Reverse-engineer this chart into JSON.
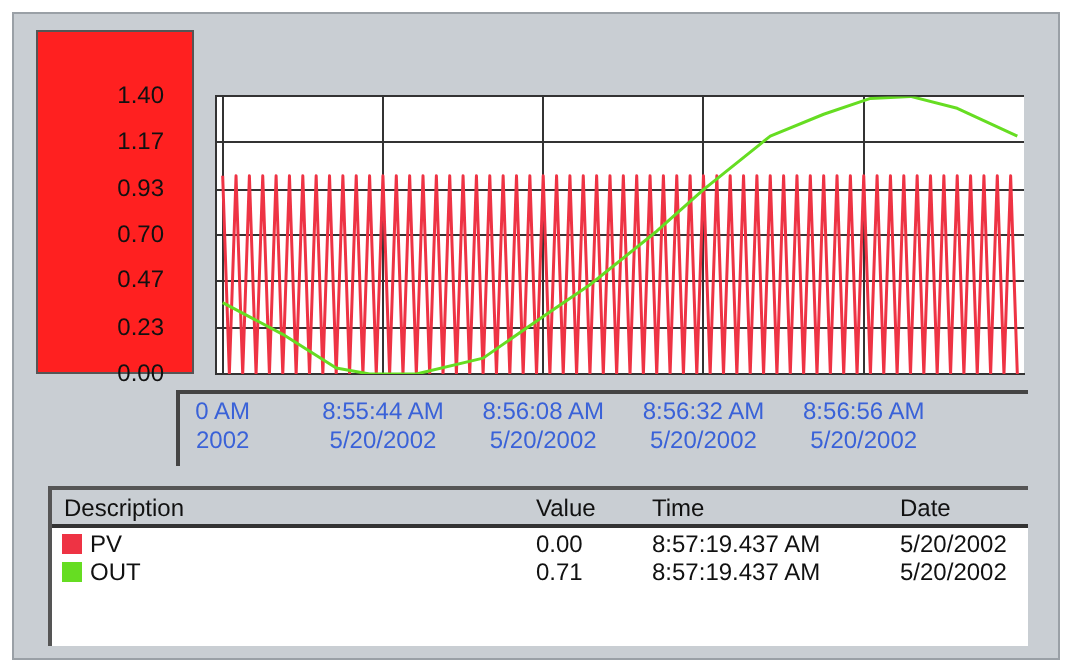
{
  "chart_data": {
    "type": "line",
    "x": [
      "2002-05-20T08:55:20",
      "2002-05-20T08:55:21",
      "2002-05-20T08:55:22",
      "2002-05-20T08:55:23",
      "2002-05-20T08:55:24",
      "2002-05-20T08:55:25",
      "2002-05-20T08:55:26",
      "2002-05-20T08:55:27",
      "2002-05-20T08:55:28",
      "2002-05-20T08:55:29",
      "2002-05-20T08:55:30",
      "2002-05-20T08:55:31",
      "2002-05-20T08:55:32",
      "2002-05-20T08:55:33",
      "2002-05-20T08:55:34",
      "2002-05-20T08:55:35",
      "2002-05-20T08:55:36",
      "2002-05-20T08:55:37",
      "2002-05-20T08:55:38",
      "2002-05-20T08:55:39",
      "2002-05-20T08:55:40",
      "2002-05-20T08:55:41",
      "2002-05-20T08:55:42",
      "2002-05-20T08:55:43",
      "2002-05-20T08:55:44",
      "2002-05-20T08:55:45",
      "2002-05-20T08:55:46",
      "2002-05-20T08:55:47",
      "2002-05-20T08:55:48",
      "2002-05-20T08:55:49",
      "2002-05-20T08:55:50",
      "2002-05-20T08:55:51",
      "2002-05-20T08:55:52",
      "2002-05-20T08:55:53",
      "2002-05-20T08:55:54",
      "2002-05-20T08:55:55",
      "2002-05-20T08:55:56",
      "2002-05-20T08:55:57",
      "2002-05-20T08:55:58",
      "2002-05-20T08:55:59",
      "2002-05-20T08:56:00",
      "2002-05-20T08:56:01",
      "2002-05-20T08:56:02",
      "2002-05-20T08:56:03",
      "2002-05-20T08:56:04",
      "2002-05-20T08:56:05",
      "2002-05-20T08:56:06",
      "2002-05-20T08:56:07",
      "2002-05-20T08:56:08",
      "2002-05-20T08:56:09",
      "2002-05-20T08:56:10",
      "2002-05-20T08:56:11",
      "2002-05-20T08:56:12",
      "2002-05-20T08:56:13",
      "2002-05-20T08:56:14",
      "2002-05-20T08:56:15",
      "2002-05-20T08:56:16",
      "2002-05-20T08:56:17",
      "2002-05-20T08:56:18",
      "2002-05-20T08:56:19",
      "2002-05-20T08:56:20",
      "2002-05-20T08:56:21",
      "2002-05-20T08:56:22",
      "2002-05-20T08:56:23",
      "2002-05-20T08:56:24",
      "2002-05-20T08:56:25",
      "2002-05-20T08:56:26",
      "2002-05-20T08:56:27",
      "2002-05-20T08:56:28",
      "2002-05-20T08:56:29",
      "2002-05-20T08:56:30",
      "2002-05-20T08:56:31",
      "2002-05-20T08:56:32",
      "2002-05-20T08:56:33",
      "2002-05-20T08:56:34",
      "2002-05-20T08:56:35",
      "2002-05-20T08:56:36",
      "2002-05-20T08:56:37",
      "2002-05-20T08:56:38",
      "2002-05-20T08:56:39",
      "2002-05-20T08:56:40",
      "2002-05-20T08:56:41",
      "2002-05-20T08:56:42",
      "2002-05-20T08:56:43",
      "2002-05-20T08:56:44",
      "2002-05-20T08:56:45",
      "2002-05-20T08:56:46",
      "2002-05-20T08:56:47",
      "2002-05-20T08:56:48",
      "2002-05-20T08:56:49",
      "2002-05-20T08:56:50",
      "2002-05-20T08:56:51",
      "2002-05-20T08:56:52",
      "2002-05-20T08:56:53",
      "2002-05-20T08:56:54",
      "2002-05-20T08:56:55",
      "2002-05-20T08:56:56",
      "2002-05-20T08:56:57",
      "2002-05-20T08:56:58",
      "2002-05-20T08:56:59",
      "2002-05-20T08:57:00",
      "2002-05-20T08:57:01",
      "2002-05-20T08:57:02",
      "2002-05-20T08:57:03",
      "2002-05-20T08:57:04",
      "2002-05-20T08:57:05",
      "2002-05-20T08:57:06",
      "2002-05-20T08:57:07",
      "2002-05-20T08:57:08",
      "2002-05-20T08:57:09",
      "2002-05-20T08:57:10",
      "2002-05-20T08:57:11",
      "2002-05-20T08:57:12",
      "2002-05-20T08:57:13",
      "2002-05-20T08:57:14",
      "2002-05-20T08:57:15",
      "2002-05-20T08:57:16",
      "2002-05-20T08:57:17",
      "2002-05-20T08:57:18",
      "2002-05-20T08:57:19"
    ],
    "series": [
      {
        "name": "PV",
        "color": "#ee3344",
        "values": [
          1,
          0,
          1,
          0,
          1,
          0,
          1,
          0,
          1,
          0,
          1,
          0,
          1,
          0,
          1,
          0,
          1,
          0,
          1,
          0,
          1,
          0,
          1,
          0,
          1,
          0,
          1,
          0,
          1,
          0,
          1,
          0,
          1,
          0,
          1,
          0,
          1,
          0,
          1,
          0,
          1,
          0,
          1,
          0,
          1,
          0,
          1,
          0,
          1,
          0,
          1,
          0,
          1,
          0,
          1,
          0,
          1,
          0,
          1,
          0,
          1,
          0,
          1,
          0,
          1,
          0,
          1,
          0,
          1,
          0,
          1,
          0,
          1,
          0,
          1,
          0,
          1,
          0,
          1,
          0,
          1,
          0,
          1,
          0,
          1,
          0,
          1,
          0,
          1,
          0,
          1,
          0,
          1,
          0,
          1,
          0,
          1,
          0,
          1,
          0,
          1,
          0,
          1,
          0,
          1,
          0,
          1,
          0,
          1,
          0,
          1,
          0,
          1,
          0,
          1,
          0,
          1,
          0,
          1,
          0
        ]
      },
      {
        "name": "OUT",
        "color": "#66dd22",
        "x": [
          "2002-05-20T08:55:20",
          "2002-05-20T08:55:29",
          "2002-05-20T08:55:37",
          "2002-05-20T08:55:42",
          "2002-05-20T08:55:49",
          "2002-05-20T08:55:59",
          "2002-05-20T08:56:08",
          "2002-05-20T08:56:15",
          "2002-05-20T08:56:25",
          "2002-05-20T08:56:32",
          "2002-05-20T08:56:42",
          "2002-05-20T08:56:50",
          "2002-05-20T08:56:57",
          "2002-05-20T08:57:03",
          "2002-05-20T08:57:10",
          "2002-05-20T08:57:19"
        ],
        "values": [
          0.36,
          0.2,
          0.03,
          0,
          0,
          0.08,
          0.29,
          0.45,
          0.72,
          0.93,
          1.2,
          1.31,
          1.39,
          1.4,
          1.34,
          1.2
        ]
      }
    ],
    "xlim": [
      "2002-05-20T08:55:19",
      "2002-05-20T08:57:20"
    ],
    "xticks": [
      {
        "value": "2002-05-20T08:55:20",
        "label": "0 AM\n2002"
      },
      {
        "value": "2002-05-20T08:55:44",
        "label": "8:55:44 AM\n5/20/2002"
      },
      {
        "value": "2002-05-20T08:56:08",
        "label": "8:56:08 AM\n5/20/2002"
      },
      {
        "value": "2002-05-20T08:56:32",
        "label": "8:56:32 AM\n5/20/2002"
      },
      {
        "value": "2002-05-20T08:56:56",
        "label": "8:56:56 AM\n5/20/2002"
      }
    ],
    "ylim": [
      0,
      1.4
    ],
    "yticks": [
      {
        "value": 0,
        "label": "0.00"
      },
      {
        "value": 0.23,
        "label": "0.23"
      },
      {
        "value": 0.47,
        "label": "0.47"
      },
      {
        "value": 0.7,
        "label": "0.70"
      },
      {
        "value": 0.93,
        "label": "0.93"
      },
      {
        "value": 1.17,
        "label": "1.17"
      },
      {
        "value": 1.4,
        "label": "1.40"
      }
    ],
    "grid": true,
    "legend": "bottom",
    "marker": "none",
    "line_style": "solid",
    "annotations": [
      "Description",
      "Value",
      "Time",
      "Date",
      "0.00",
      "8:57:19.437 AM",
      "5/20/2002",
      "0.71",
      "8:57:19.437 AM",
      "5/20/2002"
    ]
  }
}
